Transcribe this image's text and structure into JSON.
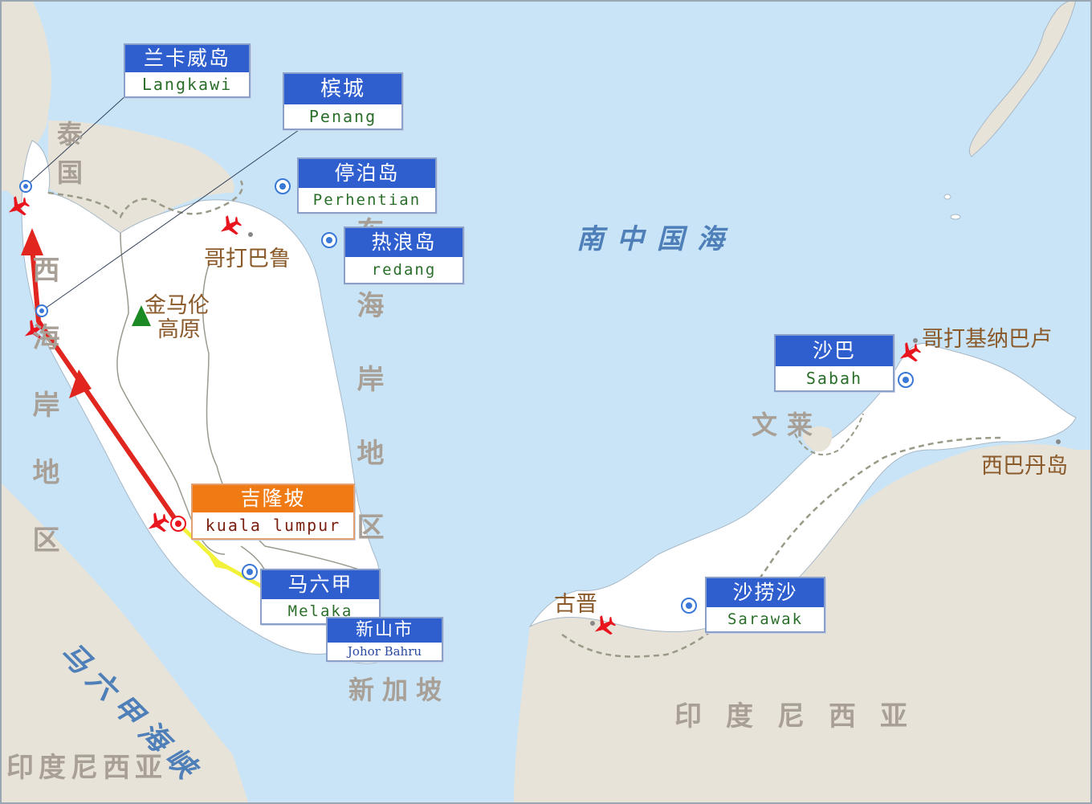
{
  "colors": {
    "sea": "#c9e4f6",
    "land": "#ffffff",
    "neighbor_land": "#e8e3d8",
    "border": "#8a8a7a",
    "route_red": "#e0261e",
    "route_yellow": "#f2f23a",
    "label_blue": "#2f5fcf",
    "label_orange": "#f07a14",
    "airport_red": "#e8141e",
    "marker_blue": "#3a78d8",
    "mountain_green": "#1b8a24"
  },
  "labels": {
    "langkawi": {
      "cn": "兰卡威岛",
      "en": "Langkawi"
    },
    "penang": {
      "cn": "槟城",
      "en": "Penang"
    },
    "perhentian": {
      "cn": "停泊岛",
      "en": "Perhentian"
    },
    "redang": {
      "cn": "热浪岛",
      "en": "redang"
    },
    "kuala_lumpur": {
      "cn": "吉隆坡",
      "en": "kuala lumpur"
    },
    "melaka": {
      "cn": "马六甲",
      "en": "Melaka"
    },
    "johor_bahru": {
      "cn": "新山市",
      "en": "Johor Bahru"
    },
    "sabah": {
      "cn": "沙巴",
      "en": "Sabah"
    },
    "sarawak": {
      "cn": "沙捞沙",
      "en": "Sarawak"
    }
  },
  "place_names": {
    "thailand": "泰国",
    "west_coast": "西海岸地区",
    "east_coast": "东海岸地区",
    "south_china_sea": "南中国海",
    "brunei": "文莱",
    "indonesia_east": "印度尼西亚",
    "indonesia_west": "印度尼西亚",
    "malacca_strait": "马六甲海峡",
    "singapore": "新加坡",
    "kota_bharu": "哥打巴鲁",
    "cameron_highlands_1": "金马伦",
    "cameron_highlands_2": "高原",
    "kota_kinabalu": "哥打基纳巴卢",
    "sipadan": "西巴丹岛",
    "kuching": "古晋"
  },
  "icons": {
    "airport": "airplane-icon",
    "destination": "target-marker-icon",
    "mountain": "mountain-icon",
    "city": "city-dot-icon"
  }
}
